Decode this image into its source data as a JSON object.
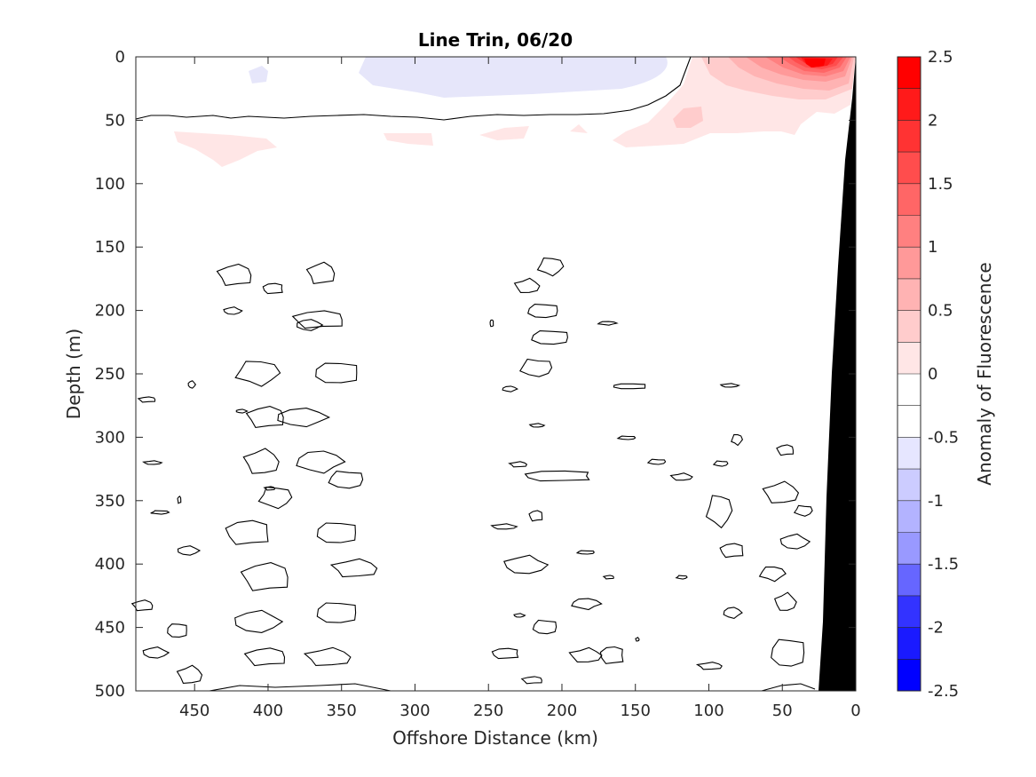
{
  "chart_data": {
    "type": "contour",
    "title": "Line Trin, 06/20",
    "xlabel": "Offshore Distance (km)",
    "ylabel": "Depth (m)",
    "colorbar_label": "Anomaly of Fluorescence",
    "xlim": [
      490,
      0
    ],
    "ylim": [
      0,
      500
    ],
    "x_reversed": true,
    "y_reversed": true,
    "x_ticks": [
      450,
      400,
      350,
      300,
      250,
      200,
      150,
      100,
      50,
      0
    ],
    "y_ticks": [
      0,
      50,
      100,
      150,
      200,
      250,
      300,
      350,
      400,
      450,
      500
    ],
    "colorbar_ticks": [
      "2.5",
      "2",
      "1.5",
      "1",
      "0.5",
      "0",
      "-0.5",
      "-1",
      "-1.5",
      "-2",
      "-2.5"
    ],
    "colorbar_range": [
      -2.5,
      2.5
    ],
    "colormap_levels": [
      "#ff0000",
      "#ff1a1a",
      "#ff3333",
      "#ff4d4d",
      "#ff6666",
      "#ff8080",
      "#ff9999",
      "#ffb3b3",
      "#ffcccc",
      "#ffe6e6",
      "#ffffff",
      "#ffffff",
      "#e6e6ff",
      "#ccccff",
      "#b3b3ff",
      "#9999ff",
      "#8080ff",
      "#6666ff",
      "#4d4dff",
      "#3333ff",
      "#1a1aff",
      "#0000ff"
    ],
    "features": {
      "max_positive_anomaly": {
        "x": 30,
        "depth": 5,
        "value": 2.4
      },
      "negative_patch_surface": {
        "x_range": [
          320,
          145
        ],
        "depth_range": [
          0,
          30
        ],
        "value": -0.3
      },
      "bathymetry_color": "#000000"
    },
    "zero_line_depth_profile": {
      "x": [
        490,
        470,
        440,
        400,
        350,
        300,
        250,
        200,
        150,
        125,
        112
      ],
      "depth": [
        50,
        46,
        48,
        47,
        46,
        45,
        47,
        48,
        44,
        30,
        0
      ]
    },
    "seafloor_profile": {
      "x": [
        0,
        0,
        10,
        20,
        25,
        28,
        0
      ],
      "depth": [
        0,
        0,
        90,
        250,
        400,
        500,
        500
      ]
    }
  }
}
